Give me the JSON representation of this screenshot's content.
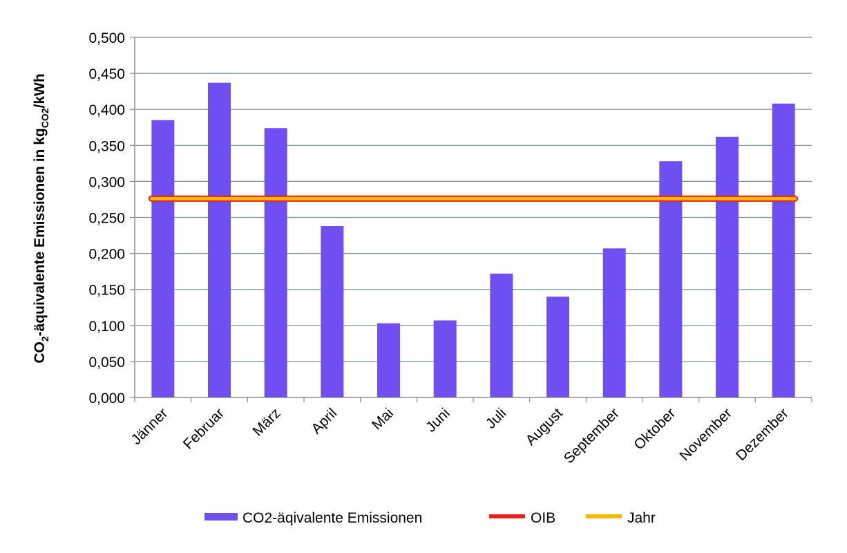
{
  "chart_data": {
    "type": "bar",
    "title": "",
    "xlabel": "",
    "ylabel": {
      "prefix": "CO",
      "sub1": "2",
      "middle": "-äquivalente Emissionen in kg",
      "sub2": "CO2",
      "suffix": "/kWh"
    },
    "ylim": [
      0,
      0.5
    ],
    "ytick_step": 0.05,
    "ytick_labels": [
      "0,000",
      "0,050",
      "0,100",
      "0,150",
      "0,200",
      "0,250",
      "0,300",
      "0,350",
      "0,400",
      "0,450",
      "0,500"
    ],
    "grid": true,
    "categories": [
      "Jänner",
      "Februar",
      "März",
      "April",
      "Mai",
      "Juni",
      "Juli",
      "August",
      "September",
      "Oktober",
      "November",
      "Dezember"
    ],
    "series": [
      {
        "name": "CO2-äqivalente Emissionen",
        "kind": "bar",
        "color": "#6f4ff2",
        "values": [
          0.385,
          0.437,
          0.374,
          0.238,
          0.103,
          0.107,
          0.172,
          0.14,
          0.207,
          0.328,
          0.362,
          0.408
        ]
      },
      {
        "name": "OIB",
        "kind": "hline",
        "color": "#e8231f",
        "value": 0.276
      },
      {
        "name": "Jahr",
        "kind": "hline",
        "color": "#f5b800",
        "value": 0.276
      }
    ],
    "legend_position": "bottom",
    "axis_color": "#8a8a8a",
    "grid_color": "#7f8c8d"
  }
}
